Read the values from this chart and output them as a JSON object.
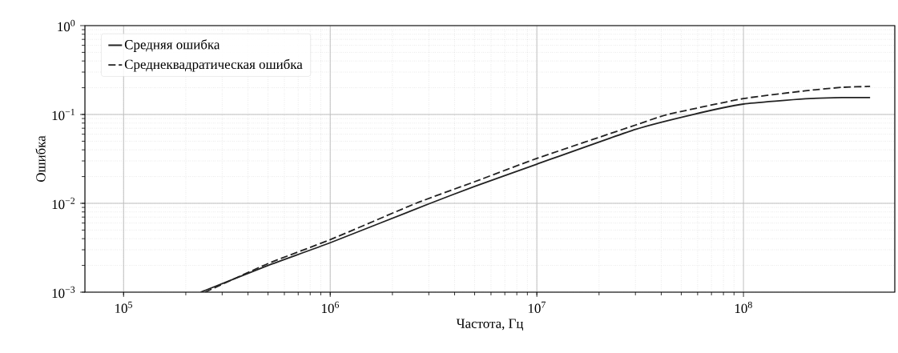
{
  "chart_data": {
    "type": "line",
    "xlabel": "Частота, Гц",
    "ylabel": "Ошибка",
    "log": "xy",
    "grid": true,
    "legend": "top left",
    "xlim": [
      65000,
      540000000
    ],
    "ylim": [
      0.001,
      1
    ],
    "xticks": [
      {
        "value": 100000,
        "label": "10$^{5}$"
      },
      {
        "value": 1000000,
        "label": "10$^{6}$"
      },
      {
        "value": 10000000,
        "label": "10$^{7}$"
      },
      {
        "value": 100000000,
        "label": "10$^{8}$"
      }
    ],
    "yticks": [
      {
        "value": 0.001,
        "label": "10$^{−3}$"
      },
      {
        "value": 0.01,
        "label": "10$^{−2}$"
      },
      {
        "value": 0.1,
        "label": "10$^{−1}$"
      },
      {
        "value": 1,
        "label": "10$^{0}$"
      }
    ],
    "series": [
      {
        "name": "Средняя ошибка",
        "color": "#222222",
        "line_style": "solid",
        "x": [
          236000,
          500000,
          1000000,
          3050000,
          5000000,
          10000000,
          30000000,
          57000000,
          100000000,
          200000000,
          300000000,
          410000000
        ],
        "values": [
          0.001,
          0.002,
          0.0036,
          0.01,
          0.0155,
          0.0276,
          0.068,
          0.1,
          0.131,
          0.15,
          0.155,
          0.155
        ]
      },
      {
        "name": "Среднеквадратическая ошибка",
        "color": "#222222",
        "line_style": "dashed",
        "x": [
          248000,
          500000,
          1000000,
          2600000,
          5000000,
          10000000,
          30000000,
          43000000,
          100000000,
          200000000,
          300000000,
          410000000
        ],
        "values": [
          0.001,
          0.0021,
          0.0039,
          0.01,
          0.0175,
          0.032,
          0.076,
          0.1,
          0.151,
          0.185,
          0.202,
          0.207
        ]
      }
    ]
  }
}
